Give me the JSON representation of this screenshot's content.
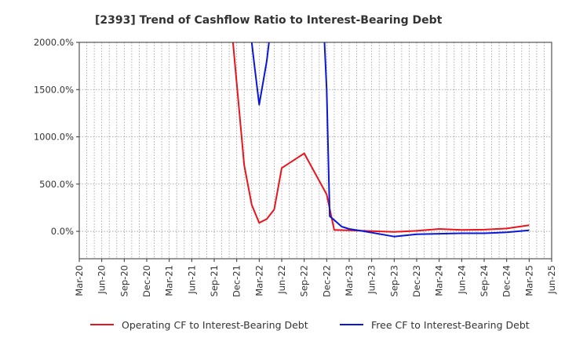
{
  "chart_data": {
    "type": "line",
    "title": "[2393]  Trend of Cashflow Ratio to Interest-Bearing Debt",
    "xlabel": "",
    "ylabel": "",
    "y_ticks": [
      {
        "value": 2000,
        "label": "2000.0%"
      },
      {
        "value": 1500,
        "label": "1500.0%"
      },
      {
        "value": 1000,
        "label": "1000.0%"
      },
      {
        "value": 500,
        "label": "500.0%"
      },
      {
        "value": 0,
        "label": "0.0%"
      }
    ],
    "ylim": [
      -290,
      2000
    ],
    "x_ticks": [
      "Mar-20",
      "Jun-20",
      "Sep-20",
      "Dec-20",
      "Mar-21",
      "Jun-21",
      "Sep-21",
      "Dec-21",
      "Mar-22",
      "Jun-22",
      "Sep-22",
      "Dec-22",
      "Mar-23",
      "Jun-23",
      "Sep-23",
      "Dec-23",
      "Mar-24",
      "Jun-24",
      "Sep-24",
      "Dec-24",
      "Mar-25",
      "Jun-25"
    ],
    "x_minor_per_major": 3,
    "grid": true,
    "legend_position": "bottom",
    "series": [
      {
        "name": "Operating CF to Interest-Bearing Debt",
        "color": "#e8141e",
        "points": [
          {
            "m": 20.5,
            "y": 2000
          },
          {
            "m": 22,
            "y": 700
          },
          {
            "m": 23,
            "y": 280
          },
          {
            "m": 24,
            "y": 90
          },
          {
            "m": 25,
            "y": 130
          },
          {
            "m": 26,
            "y": 230
          },
          {
            "m": 27,
            "y": 670
          },
          {
            "m": 30,
            "y": 825
          },
          {
            "m": 33,
            "y": 390
          },
          {
            "m": 34,
            "y": 15
          },
          {
            "m": 36,
            "y": 10
          },
          {
            "m": 39,
            "y": 2
          },
          {
            "m": 42,
            "y": -5
          },
          {
            "m": 45,
            "y": 5
          },
          {
            "m": 48,
            "y": 25
          },
          {
            "m": 51,
            "y": 15
          },
          {
            "m": 54,
            "y": 18
          },
          {
            "m": 57,
            "y": 30
          },
          {
            "m": 60,
            "y": 65
          }
        ]
      },
      {
        "name": "Free CF to Interest-Bearing Debt",
        "color": "#0a18d4",
        "segments": [
          [
            {
              "m": 23,
              "y": 2000
            },
            {
              "m": 23.3,
              "y": 1800
            },
            {
              "m": 24,
              "y": 1340
            },
            {
              "m": 25,
              "y": 1800
            },
            {
              "m": 25.3,
              "y": 2000
            }
          ],
          [
            {
              "m": 32.7,
              "y": 2000
            },
            {
              "m": 33,
              "y": 1500
            },
            {
              "m": 33.4,
              "y": 160
            },
            {
              "m": 34,
              "y": 120
            },
            {
              "m": 35,
              "y": 50
            },
            {
              "m": 36,
              "y": 25
            },
            {
              "m": 38,
              "y": 0
            },
            {
              "m": 42,
              "y": -55
            },
            {
              "m": 45,
              "y": -30
            },
            {
              "m": 48,
              "y": -25
            },
            {
              "m": 51,
              "y": -20
            },
            {
              "m": 54,
              "y": -20
            },
            {
              "m": 57,
              "y": -10
            },
            {
              "m": 60,
              "y": 10
            }
          ]
        ]
      }
    ]
  }
}
